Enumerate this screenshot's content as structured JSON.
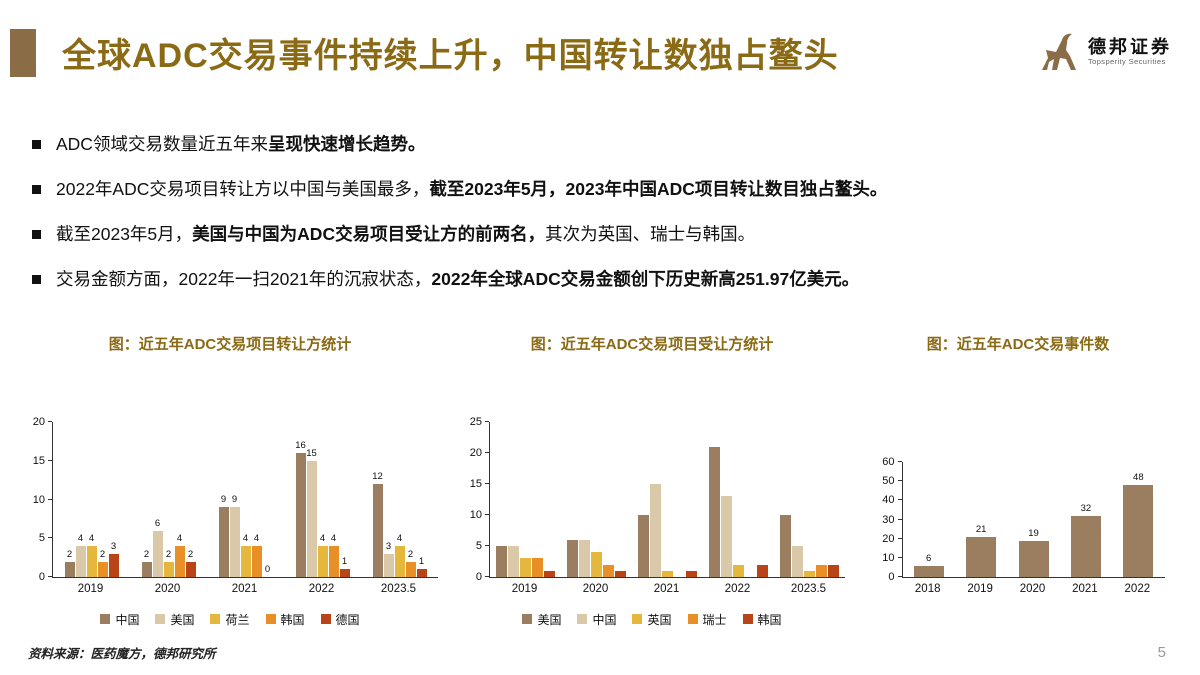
{
  "page": {
    "title": "全球ADC交易事件持续上升，中国转让数独占鳌头",
    "source_note": "资料来源：医药魔方，德邦研究所",
    "page_number": "5"
  },
  "logo": {
    "name_cn": "德邦证券",
    "name_en": "Topsperity Securities",
    "icon": "ibex-icon"
  },
  "colors": {
    "accent": "#8a6a14",
    "accent_block": "#8a6c46",
    "text": "#111111",
    "page_number": "#999999"
  },
  "bullets": [
    {
      "segments": [
        {
          "text": "ADC领域交易数量近五年来",
          "bold": false
        },
        {
          "text": "呈现快速增长趋势。",
          "bold": true
        }
      ]
    },
    {
      "segments": [
        {
          "text": "2022年ADC交易项目转让方以中国与美国最多，",
          "bold": false
        },
        {
          "text": "截至2023年5月，2023年中国ADC项目转让数目独占鳌头。",
          "bold": true
        }
      ]
    },
    {
      "segments": [
        {
          "text": "截至2023年5月，",
          "bold": false
        },
        {
          "text": "美国与中国为ADC交易项目受让方的前两名，",
          "bold": true
        },
        {
          "text": "其次为英国、瑞士与韩国。",
          "bold": false
        }
      ]
    },
    {
      "segments": [
        {
          "text": "交易金额方面，2022年一扫2021年的沉寂状态，",
          "bold": false
        },
        {
          "text": "2022年全球ADC交易金额创下历史新高251.97亿美元。",
          "bold": true
        }
      ]
    }
  ],
  "chart_data": [
    {
      "type": "bar",
      "title": "图：近五年ADC交易项目转让方统计",
      "categories": [
        "2019",
        "2020",
        "2021",
        "2022",
        "2023.5"
      ],
      "series": [
        {
          "name": "中国",
          "color": "#9b7d5f",
          "values": [
            2,
            2,
            9,
            16,
            12
          ]
        },
        {
          "name": "美国",
          "color": "#d9c9a9",
          "values": [
            4,
            6,
            9,
            15,
            3
          ]
        },
        {
          "name": "荷兰",
          "color": "#e6b73d",
          "values": [
            4,
            2,
            4,
            4,
            4
          ]
        },
        {
          "name": "韩国",
          "color": "#e98f27",
          "values": [
            2,
            4,
            4,
            4,
            2
          ]
        },
        {
          "name": "德国",
          "color": "#b84418",
          "values": [
            3,
            2,
            0,
            1,
            1
          ]
        }
      ],
      "ylim": [
        0,
        20
      ],
      "ytick": 5,
      "grid": false,
      "show_labels": true,
      "show_legend": true,
      "legend_position": "bottom"
    },
    {
      "type": "bar",
      "title": "图：近五年ADC交易项目受让方统计",
      "categories": [
        "2019",
        "2020",
        "2021",
        "2022",
        "2023.5"
      ],
      "series": [
        {
          "name": "美国",
          "color": "#9b7d5f",
          "values": [
            5,
            6,
            10,
            21,
            10
          ]
        },
        {
          "name": "中国",
          "color": "#d9c9a9",
          "values": [
            5,
            6,
            15,
            13,
            5
          ]
        },
        {
          "name": "英国",
          "color": "#e6b73d",
          "values": [
            3,
            4,
            1,
            2,
            1
          ]
        },
        {
          "name": "瑞士",
          "color": "#e98f27",
          "values": [
            3,
            2,
            0,
            0,
            2
          ]
        },
        {
          "name": "韩国",
          "color": "#b84418",
          "values": [
            1,
            1,
            1,
            2,
            2
          ]
        }
      ],
      "ylim": [
        0,
        25
      ],
      "ytick": 5,
      "grid": false,
      "show_labels": false,
      "show_legend": true,
      "legend_position": "bottom"
    },
    {
      "type": "bar",
      "title": "图：近五年ADC交易事件数",
      "categories": [
        "2018",
        "2019",
        "2020",
        "2021",
        "2022"
      ],
      "series": [
        {
          "name": "交易事件数",
          "color": "#9b7d5f",
          "values": [
            6,
            21,
            19,
            32,
            48
          ]
        }
      ],
      "ylim": [
        0,
        60
      ],
      "ytick": 10,
      "grid": false,
      "show_labels": true,
      "show_legend": false
    }
  ]
}
